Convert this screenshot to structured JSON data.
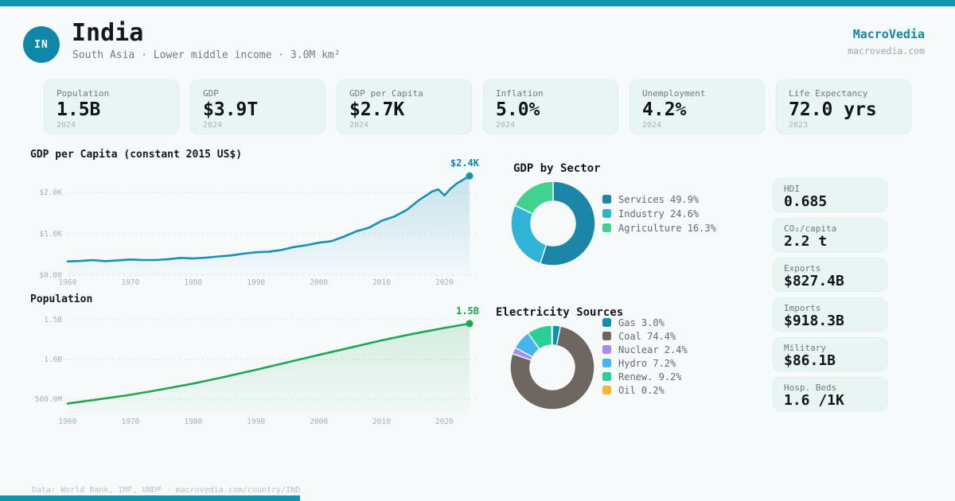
{
  "brand": {
    "name": "MacroVedia",
    "site": "macrovedia.com",
    "accent": "#0d94ae"
  },
  "header": {
    "badge": "IN",
    "title": "India",
    "subtitle": "South Asia · Lower middle income · 3.0M km²"
  },
  "stat_cards": [
    {
      "label": "Population",
      "value": "1.5B",
      "year": "2024"
    },
    {
      "label": "GDP",
      "value": "$3.9T",
      "year": "2024"
    },
    {
      "label": "GDP per Capita",
      "value": "$2.7K",
      "year": "2024"
    },
    {
      "label": "Inflation",
      "value": "5.0%",
      "year": "2024"
    },
    {
      "label": "Unemployment",
      "value": "4.2%",
      "year": "2024"
    },
    {
      "label": "Life Expectancy",
      "value": "72.0 yrs",
      "year": "2023"
    }
  ],
  "side_cards": [
    {
      "label": "HDI",
      "value": "0.685"
    },
    {
      "label": "CO₂/capita",
      "value": "2.2 t"
    },
    {
      "label": "Exports",
      "value": "$827.4B"
    },
    {
      "label": "Imports",
      "value": "$918.3B"
    },
    {
      "label": "Military",
      "value": "$86.1B"
    },
    {
      "label": "Hosp. Beds",
      "value": "1.6 /1K"
    }
  ],
  "footer": {
    "text": "Data: World Bank, IMF, UNDP · macrovedia.com/country/IND"
  },
  "chart_data": [
    {
      "type": "area",
      "title": "GDP per Capita (constant 2015 US$)",
      "x": [
        1960,
        1962,
        1964,
        1966,
        1968,
        1970,
        1972,
        1974,
        1976,
        1978,
        1980,
        1982,
        1984,
        1986,
        1988,
        1990,
        1992,
        1994,
        1996,
        1998,
        2000,
        2002,
        2004,
        2006,
        2008,
        2010,
        2012,
        2014,
        2016,
        2018,
        2019,
        2020,
        2021,
        2022,
        2024
      ],
      "values": [
        333,
        342,
        366,
        338,
        357,
        378,
        365,
        366,
        386,
        417,
        404,
        424,
        452,
        477,
        520,
        554,
        566,
        607,
        678,
        723,
        785,
        821,
        932,
        1061,
        1148,
        1314,
        1418,
        1576,
        1820,
        2022,
        2075,
        1929,
        2095,
        2220,
        2400
      ],
      "end_label": "$2.4K",
      "xticks": [
        1960,
        1970,
        1980,
        1990,
        2000,
        2010,
        2020
      ],
      "yticks": [
        {
          "value": 0,
          "label": "$0.00"
        },
        {
          "value": 1000,
          "label": "$1.0K"
        },
        {
          "value": 2000,
          "label": "$2.0K"
        }
      ],
      "ylim": [
        0,
        2600
      ],
      "grid": true,
      "line_color": "#1591b5",
      "fill_from": "rgba(21,145,181,0.22)",
      "fill_to": "rgba(21,145,181,0.02)",
      "label_color": "#0f86a8"
    },
    {
      "type": "area",
      "title": "Population",
      "x": [
        1960,
        1965,
        1970,
        1975,
        1980,
        1985,
        1990,
        1995,
        2000,
        2005,
        2010,
        2015,
        2020,
        2024
      ],
      "values": [
        446,
        499,
        555,
        624,
        697,
        781,
        870,
        964,
        1057,
        1148,
        1240,
        1322,
        1396,
        1451
      ],
      "unit": "millions",
      "end_label": "1.5B",
      "xticks": [
        1960,
        1970,
        1980,
        1990,
        2000,
        2010,
        2020
      ],
      "yticks": [
        {
          "value": 500,
          "label": "500.0M"
        },
        {
          "value": 1000,
          "label": "1.0B"
        },
        {
          "value": 1500,
          "label": "1.5B"
        }
      ],
      "ylim": [
        300,
        1550
      ],
      "grid": true,
      "line_color": "#1ca750",
      "fill_from": "rgba(28,167,80,0.16)",
      "fill_to": "rgba(28,167,80,0.02)",
      "label_color": "#17a24b"
    },
    {
      "type": "donut",
      "title": "GDP by Sector",
      "slices": [
        {
          "label": "Services",
          "pct": "49.9%",
          "value": 49.9,
          "color": "#1b86a8"
        },
        {
          "label": "Industry",
          "pct": "24.6%",
          "value": 24.6,
          "color": "#2fb3d6"
        },
        {
          "label": "Agriculture",
          "pct": "16.3%",
          "value": 16.3,
          "color": "#43d190"
        }
      ],
      "legend_position": "right"
    },
    {
      "type": "donut",
      "title": "Electricity Sources",
      "slices": [
        {
          "label": "Gas",
          "pct": "3.0%",
          "value": 3.0,
          "color": "#128fb0"
        },
        {
          "label": "Coal",
          "pct": "74.4%",
          "value": 74.4,
          "color": "#6e6661"
        },
        {
          "label": "Nuclear",
          "pct": "2.4%",
          "value": 2.4,
          "color": "#a58cf5"
        },
        {
          "label": "Hydro",
          "pct": "7.2%",
          "value": 7.2,
          "color": "#45b5f2"
        },
        {
          "label": "Renew.",
          "pct": "9.2%",
          "value": 9.2,
          "color": "#2bce96"
        },
        {
          "label": "Oil",
          "pct": "0.2%",
          "value": 0.2,
          "color": "#f6b52b"
        }
      ],
      "legend_position": "right"
    }
  ]
}
